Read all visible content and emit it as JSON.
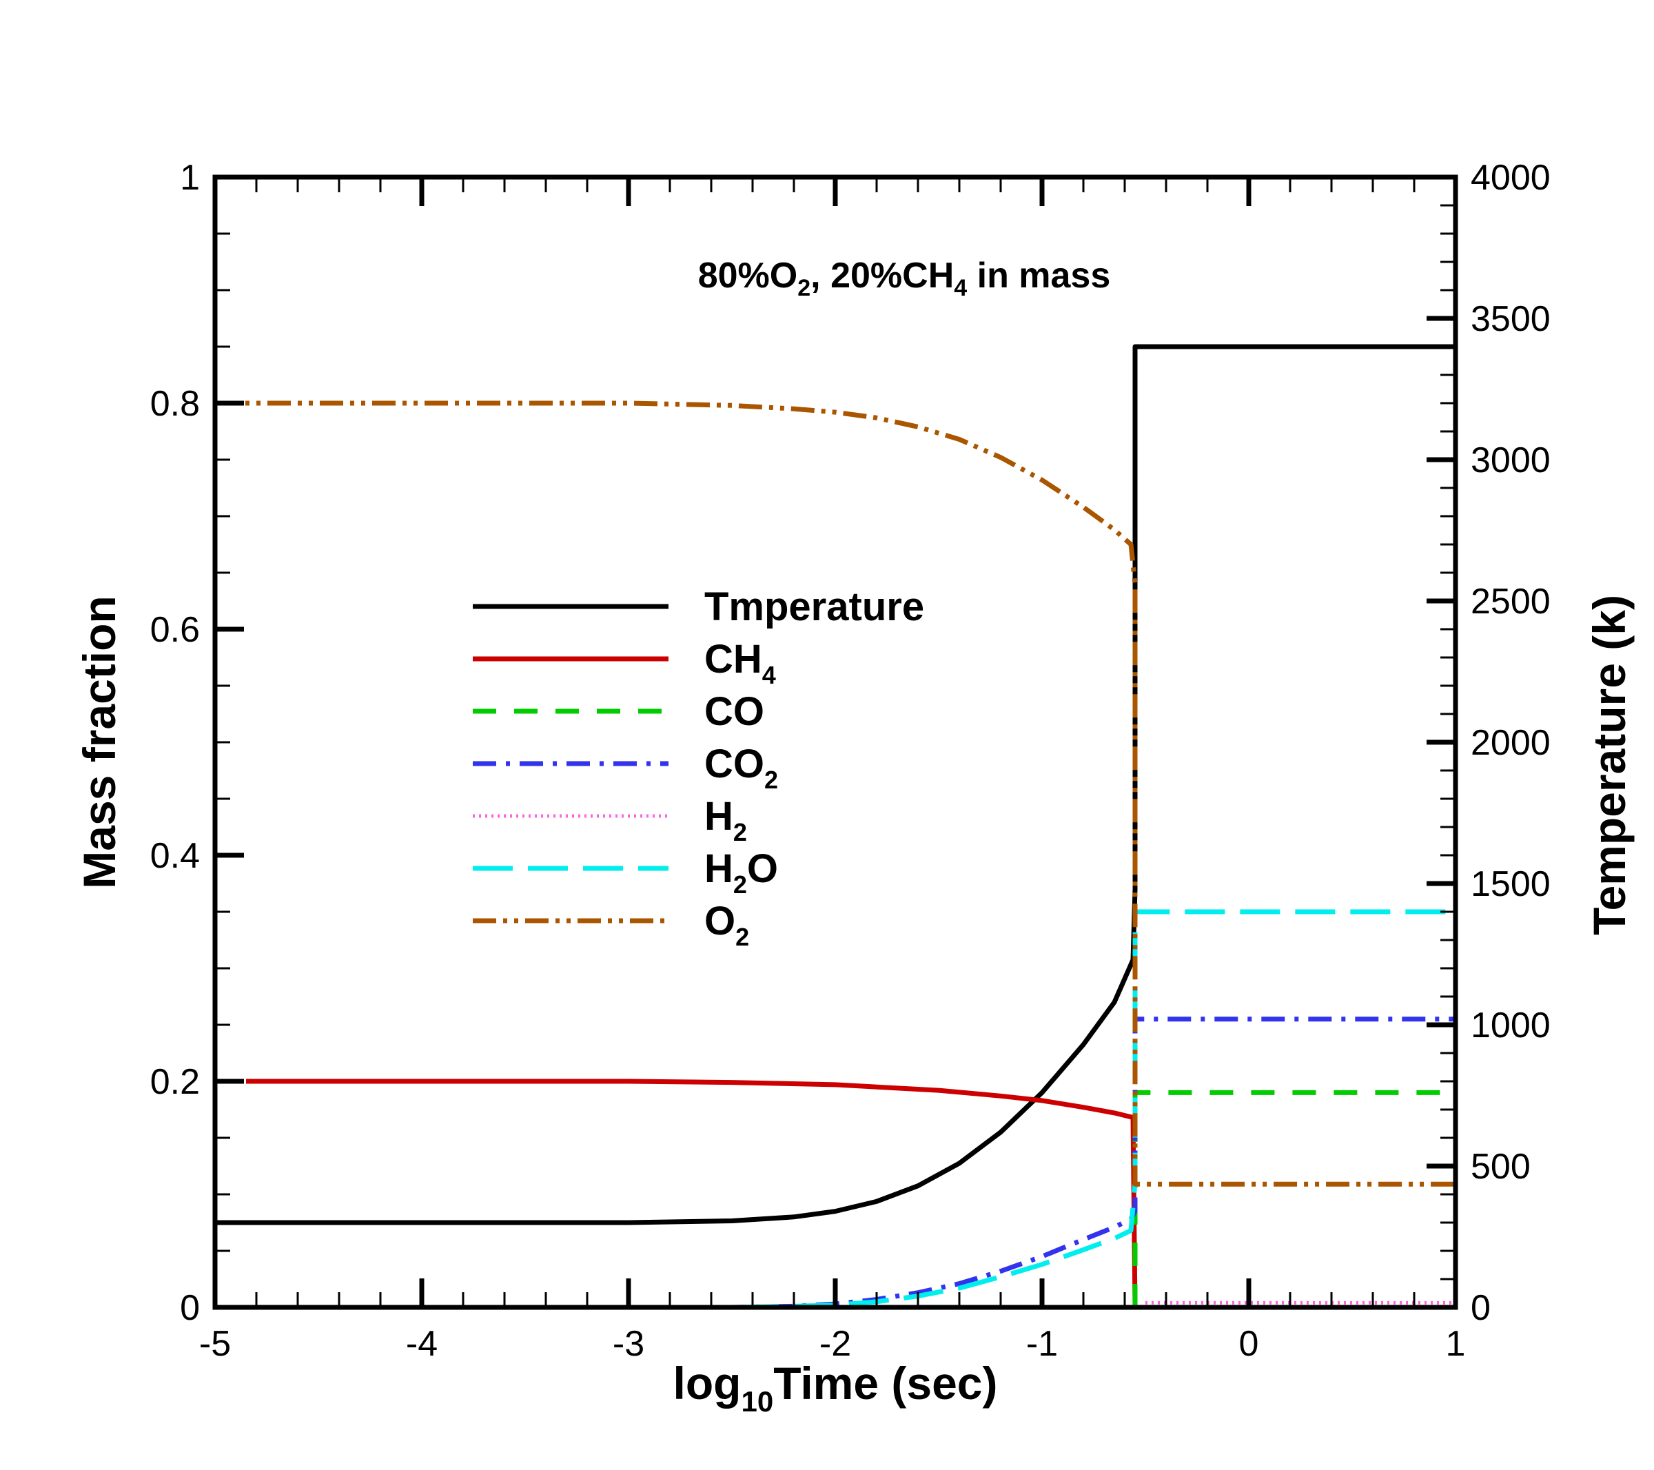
{
  "chart_data": {
    "type": "line",
    "annotation": {
      "prefix": "80%O",
      "sub1": "2",
      "mid": ", 20%CH",
      "sub2": "4",
      "suffix": " in mass"
    },
    "xlabel": {
      "prefix": "log",
      "sub": "10",
      "suffix": "Time (sec)"
    },
    "ylabel": "Mass fraction",
    "y2label": "Temperature (k)",
    "xlim": [
      -5,
      1
    ],
    "ylim": [
      0,
      1
    ],
    "y2lim": [
      0,
      4000
    ],
    "xticks": [
      -5,
      -4,
      -3,
      -2,
      -1,
      0,
      1
    ],
    "yticks": [
      0,
      0.2,
      0.4,
      0.6,
      0.8,
      1
    ],
    "y2ticks": [
      0,
      500,
      1000,
      1500,
      2000,
      2500,
      3000,
      3500,
      4000
    ],
    "ignition_x": -0.55,
    "grid": false,
    "legend_placement": "center-left",
    "series": [
      {
        "key": "T",
        "label": "Tmperature",
        "sub": "",
        "suffix": "",
        "axis": "right",
        "color": "#000000",
        "dash": "solid",
        "points": [
          [
            -5,
            300
          ],
          [
            -3,
            300
          ],
          [
            -2.5,
            306
          ],
          [
            -2.2,
            320
          ],
          [
            -2,
            340
          ],
          [
            -1.8,
            375
          ],
          [
            -1.6,
            430
          ],
          [
            -1.4,
            510
          ],
          [
            -1.2,
            620
          ],
          [
            -1.0,
            760
          ],
          [
            -0.8,
            930
          ],
          [
            -0.65,
            1080
          ],
          [
            -0.56,
            1230
          ],
          [
            -0.55,
            1480
          ],
          [
            -0.55,
            3400
          ],
          [
            1,
            3400
          ]
        ]
      },
      {
        "key": "CH4",
        "label": "CH",
        "sub": "4",
        "suffix": "",
        "axis": "left",
        "color": "#cc0000",
        "dash": "solid",
        "points": [
          [
            -4.85,
            0.2
          ],
          [
            -3,
            0.2
          ],
          [
            -2.5,
            0.199
          ],
          [
            -2,
            0.197
          ],
          [
            -1.5,
            0.192
          ],
          [
            -1.2,
            0.187
          ],
          [
            -1.0,
            0.183
          ],
          [
            -0.8,
            0.177
          ],
          [
            -0.65,
            0.172
          ],
          [
            -0.56,
            0.168
          ],
          [
            -0.55,
            0.0
          ],
          [
            1,
            0.0
          ]
        ]
      },
      {
        "key": "CO",
        "label": "CO",
        "sub": "",
        "suffix": "",
        "axis": "left",
        "color": "#00cc00",
        "dash": "dashed",
        "points": [
          [
            -0.55,
            0.0
          ],
          [
            -0.55,
            0.042
          ],
          [
            -0.55,
            0.19
          ],
          [
            1,
            0.19
          ]
        ]
      },
      {
        "key": "CO2",
        "label": "CO",
        "sub": "2",
        "suffix": "",
        "axis": "left",
        "color": "#3333ee",
        "dash": "dashdot",
        "points": [
          [
            -3,
            0.0
          ],
          [
            -2.5,
            0.0
          ],
          [
            -2.2,
            0.001
          ],
          [
            -2.0,
            0.003
          ],
          [
            -1.8,
            0.007
          ],
          [
            -1.6,
            0.013
          ],
          [
            -1.4,
            0.021
          ],
          [
            -1.2,
            0.032
          ],
          [
            -1.0,
            0.045
          ],
          [
            -0.8,
            0.06
          ],
          [
            -0.65,
            0.071
          ],
          [
            -0.57,
            0.078
          ],
          [
            -0.55,
            0.085
          ],
          [
            -0.55,
            0.255
          ],
          [
            1,
            0.255
          ]
        ]
      },
      {
        "key": "H2",
        "label": "H",
        "sub": "2",
        "suffix": "",
        "axis": "left",
        "color": "#ff66dd",
        "dash": "dotted",
        "points": [
          [
            -0.5,
            0.004
          ],
          [
            1,
            0.004
          ]
        ]
      },
      {
        "key": "H2O",
        "label": "H",
        "sub": "2",
        "suffix": "O",
        "axis": "left",
        "color": "#00eeee",
        "dash": "longdash",
        "points": [
          [
            -3,
            0.0
          ],
          [
            -2.5,
            0.0
          ],
          [
            -2.2,
            0.001
          ],
          [
            -2.0,
            0.002
          ],
          [
            -1.8,
            0.005
          ],
          [
            -1.6,
            0.01
          ],
          [
            -1.4,
            0.017
          ],
          [
            -1.2,
            0.027
          ],
          [
            -1.0,
            0.038
          ],
          [
            -0.8,
            0.051
          ],
          [
            -0.65,
            0.061
          ],
          [
            -0.57,
            0.068
          ],
          [
            -0.55,
            0.11
          ],
          [
            -0.55,
            0.35
          ],
          [
            1,
            0.35
          ]
        ]
      },
      {
        "key": "O2",
        "label": "O",
        "sub": "2",
        "suffix": "",
        "axis": "left",
        "color": "#aa5500",
        "dash": "dashdotdot",
        "points": [
          [
            -5,
            0.8
          ],
          [
            -3,
            0.8
          ],
          [
            -2.5,
            0.798
          ],
          [
            -2.2,
            0.795
          ],
          [
            -2.0,
            0.792
          ],
          [
            -1.8,
            0.787
          ],
          [
            -1.6,
            0.779
          ],
          [
            -1.4,
            0.768
          ],
          [
            -1.2,
            0.752
          ],
          [
            -1.0,
            0.732
          ],
          [
            -0.8,
            0.708
          ],
          [
            -0.65,
            0.688
          ],
          [
            -0.57,
            0.675
          ],
          [
            -0.55,
            0.64
          ],
          [
            -0.55,
            0.109
          ],
          [
            1,
            0.109
          ]
        ]
      }
    ]
  }
}
